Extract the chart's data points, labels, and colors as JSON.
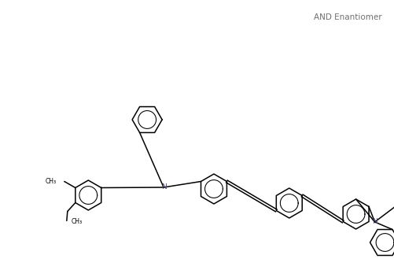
{
  "annotation": "AND Enantiomer",
  "bg_color": "#ffffff",
  "bond_color": "#000000",
  "N_color": "#4444aa",
  "lw": 1.1,
  "figsize": [
    5.01,
    3.43
  ],
  "dpi": 100,
  "xlim": [
    0,
    10
  ],
  "ylim": [
    0,
    6.86
  ],
  "ring_r": 0.38
}
